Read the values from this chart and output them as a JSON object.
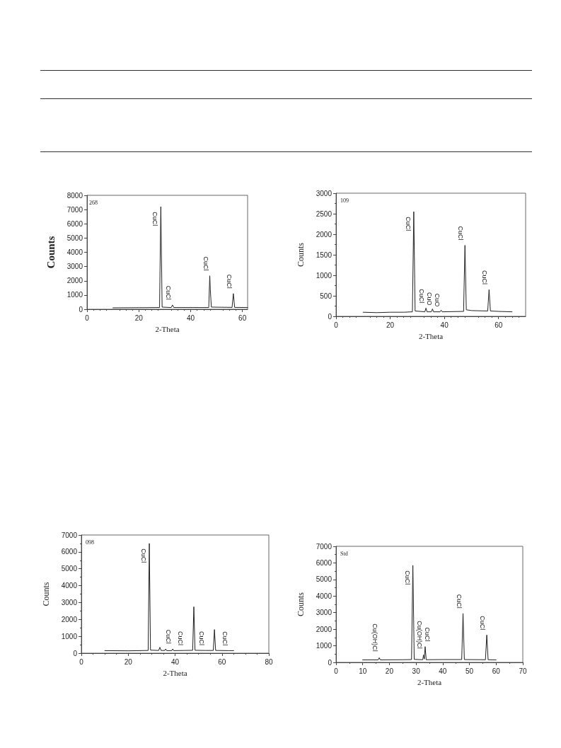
{
  "chart_data": [
    {
      "type": "line",
      "xlabel": "2-Theta",
      "ylabel": "Counts",
      "xlim": [
        0,
        62
      ],
      "xticks": [
        0,
        20,
        40,
        60
      ],
      "ylim": [
        0,
        8000
      ],
      "yticks": [
        0,
        1000,
        2000,
        3000,
        4000,
        5000,
        6000,
        7000,
        8000
      ],
      "grid": false,
      "marker": "none",
      "line_style": "solid",
      "series": [
        {
          "color": "#222222",
          "x": [
            10,
            20,
            28,
            28.5,
            29,
            32.5,
            33,
            33.5,
            47,
            47.4,
            47.6,
            48,
            56,
            56.5,
            57,
            62
          ],
          "values": [
            100,
            110,
            120,
            7200,
            150,
            120,
            300,
            120,
            120,
            2350,
            1400,
            150,
            130,
            1100,
            130,
            120
          ]
        }
      ],
      "annotations": [
        "268",
        {
          "text": "CuCl",
          "x": 28.5,
          "y": 7200
        },
        {
          "text": "CuCl",
          "x": 33,
          "y": 300
        },
        {
          "text": "CuCl",
          "x": 47.4,
          "y": 2350
        },
        {
          "text": "CuCl",
          "x": 56.5,
          "y": 1100
        }
      ]
    },
    {
      "type": "line",
      "xlabel": "2-Theta",
      "ylabel": "Counts",
      "xlim": [
        0,
        70
      ],
      "xticks": [
        0,
        20,
        40,
        60
      ],
      "ylim": [
        0,
        3000
      ],
      "yticks": [
        0,
        500,
        1000,
        1500,
        2000,
        2500,
        3000
      ],
      "grid": false,
      "marker": "none",
      "line_style": "solid",
      "series": [
        {
          "color": "#222222",
          "x": [
            10,
            15,
            20,
            25,
            28.2,
            28.7,
            29.2,
            32.8,
            33.2,
            33.6,
            35.2,
            35.6,
            36,
            38.4,
            38.8,
            39.2,
            47.1,
            47.6,
            48.1,
            50,
            56,
            56.5,
            57,
            60,
            65
          ],
          "values": [
            100,
            90,
            100,
            100,
            110,
            2550,
            130,
            110,
            200,
            110,
            110,
            180,
            110,
            110,
            150,
            110,
            120,
            1730,
            160,
            140,
            130,
            650,
            130,
            120,
            110
          ]
        }
      ],
      "annotations": [
        "109",
        {
          "text": "CuCl",
          "x": 28.7,
          "y": 2550
        },
        {
          "text": "CuCl",
          "x": 33.2,
          "y": 200
        },
        {
          "text": "CuO",
          "x": 35.6,
          "y": 180
        },
        {
          "text": "CuO",
          "x": 38.8,
          "y": 150
        },
        {
          "text": "CuCl",
          "x": 47.6,
          "y": 1730
        },
        {
          "text": "CuCl",
          "x": 56.5,
          "y": 650
        }
      ]
    },
    {
      "type": "line",
      "xlabel": "2-Theta",
      "ylabel": "Counts",
      "xlim": [
        0,
        80
      ],
      "xticks": [
        0,
        20,
        40,
        60,
        80
      ],
      "ylim": [
        0,
        7000
      ],
      "yticks": [
        0,
        1000,
        2000,
        3000,
        4000,
        5000,
        6000,
        7000
      ],
      "grid": false,
      "marker": "none",
      "line_style": "solid",
      "series": [
        {
          "color": "#222222",
          "x": [
            10,
            20,
            28.5,
            29,
            29.5,
            33,
            33.5,
            34,
            35.6,
            36,
            36.4,
            38.6,
            39,
            39.4,
            44,
            47.5,
            48,
            48.5,
            53,
            56.3,
            56.8,
            57.3,
            63,
            65
          ],
          "values": [
            150,
            140,
            160,
            6500,
            180,
            160,
            350,
            160,
            160,
            250,
            150,
            150,
            250,
            150,
            160,
            170,
            2750,
            170,
            160,
            160,
            1400,
            160,
            150,
            150
          ]
        }
      ],
      "annotations": [
        "098",
        {
          "text": "CuCl",
          "x": 29,
          "y": 6500
        },
        {
          "text": "CuCl",
          "x": 39,
          "y": 250
        },
        {
          "text": "CuCl",
          "x": 44,
          "y": 160
        },
        {
          "text": "CuCl",
          "x": 53,
          "y": 160
        },
        {
          "text": "CuCl",
          "x": 63,
          "y": 150
        }
      ]
    },
    {
      "type": "line",
      "xlabel": "2-Theta",
      "ylabel": "Counts",
      "xlim": [
        0,
        70
      ],
      "xticks": [
        0,
        10,
        20,
        30,
        40,
        50,
        60,
        70
      ],
      "ylim": [
        0,
        7000
      ],
      "yticks": [
        0,
        1000,
        2000,
        3000,
        4000,
        5000,
        6000,
        7000
      ],
      "grid": false,
      "marker": "none",
      "line_style": "solid",
      "series": [
        {
          "color": "#222222",
          "x": [
            10,
            15.8,
            16.2,
            16.6,
            25,
            28.3,
            28.8,
            29.3,
            32.5,
            32.8,
            33.1,
            33.4,
            33.8,
            40,
            47.1,
            47.6,
            48.1,
            56,
            56.5,
            57,
            60
          ],
          "values": [
            150,
            150,
            280,
            150,
            160,
            170,
            5850,
            180,
            160,
            450,
            200,
            950,
            160,
            170,
            170,
            2950,
            170,
            160,
            1650,
            160,
            150
          ]
        }
      ],
      "annotations": [
        "Std",
        {
          "text": "Cu(OH)Cl",
          "x": 16.2,
          "y": 280
        },
        {
          "text": "CuCl",
          "x": 28.8,
          "y": 5850
        },
        {
          "text": "Cu(OH)Cl",
          "x": 32.8,
          "y": 450
        },
        {
          "text": "CuCl",
          "x": 33.4,
          "y": 950
        },
        {
          "text": "CuCl",
          "x": 47.6,
          "y": 2950
        },
        {
          "text": "CuCl",
          "x": 56.5,
          "y": 1650
        }
      ]
    }
  ]
}
